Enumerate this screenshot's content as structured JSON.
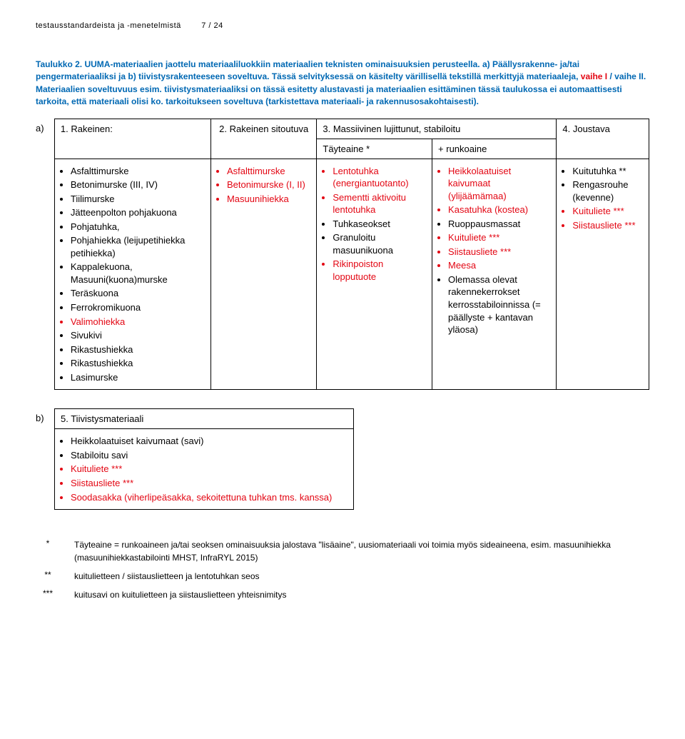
{
  "header": {
    "title_left": "testausstandardeista ja -menetelmistä",
    "page_num": "7 / 24"
  },
  "caption": {
    "lead": "Taulukko 2. UUMA-materiaalien jaottelu materiaaliluokkiin materiaalien teknisten ominaisuuksien perusteella. a) Päällysrakenne- ja/tai pengermateriaaliksi ja b) tiivistysrakenteeseen soveltuva. Tässä selvityksessä on käsitelty värillisellä tekstillä merkittyjä materiaaleja, ",
    "phase1": "vaihe I",
    "sep": " / ",
    "phase2": "vaihe II",
    "tail": ". Materiaalien soveltuvuus esim. tiivistysmateriaaliksi on tässä esitetty alustavasti ja materiaalien esittäminen tässä taulukossa ei automaattisesti tarkoita, että materiaali olisi ko. tarkoitukseen soveltuva (tarkistettava materiaali- ja rakennusosakohtaisesti)."
  },
  "labels": {
    "a": "a)",
    "b": "b)"
  },
  "tableA": {
    "head": {
      "c1": "1. Rakeinen:",
      "c2": "2. Rakeinen sitoutuva",
      "c3_top": "3. Massiivinen lujittunut, stabiloitu",
      "c3_left": "Täyteaine *",
      "c3_right": "+ runkoaine",
      "c4": "4. Joustava"
    },
    "col1": [
      {
        "t": "Asfalttimurske",
        "c": "blk"
      },
      {
        "t": "Betonimurske (III, IV)",
        "c": "blk"
      },
      {
        "t": "Tiilimurske",
        "c": "blk"
      },
      {
        "t": "Jätteenpolton pohjakuona",
        "c": "blk"
      },
      {
        "t": "Pohjatuhka,",
        "c": "blk"
      },
      {
        "t": "Pohjahiekka (leijupetihiekka petihiekka)",
        "c": "blk"
      },
      {
        "t": "Kappalekuona, Masuuni(kuona)murske",
        "c": "blk"
      },
      {
        "t": "Teräskuona",
        "c": "blk"
      },
      {
        "t": "Ferrokromikuona",
        "c": "blk"
      },
      {
        "t": "Valimohiekka",
        "c": "red"
      },
      {
        "t": "Sivukivi",
        "c": "blk"
      },
      {
        "t": "Rikastushiekka",
        "c": "blk"
      },
      {
        "t": "Rikastushiekka",
        "c": "blk"
      },
      {
        "t": "Lasimurske",
        "c": "blk"
      }
    ],
    "col2": [
      {
        "t": "Asfalttimurske",
        "c": "red"
      },
      {
        "t": "Betonimurske (I, II)",
        "c": "red"
      },
      {
        "t": "Masuunihiekka",
        "c": "red"
      }
    ],
    "col3a": [
      {
        "t": "Lentotuhka (energiantuotanto)",
        "c": "red"
      },
      {
        "t": "Sementti aktivoitu lentotuhka",
        "c": "red"
      },
      {
        "t": "Tuhkaseokset",
        "c": "blk"
      },
      {
        "t": "Granuloitu masuunikuona",
        "c": "blk"
      },
      {
        "t": "Rikinpoiston lopputuote",
        "c": "red"
      }
    ],
    "col3b": [
      {
        "t": "Heikkolaatuiset kaivumaat (ylijäämämaa)",
        "c": "red"
      },
      {
        "t": "Kasatuhka (kostea)",
        "c": "red"
      },
      {
        "t": "Ruoppausmassat",
        "c": "blk"
      },
      {
        "t": "Kuituliete ***",
        "c": "red"
      },
      {
        "t": "Siistausliete ***",
        "c": "red"
      },
      {
        "t": "Meesa",
        "c": "red"
      },
      {
        "t": "Olemassa olevat rakennekerrokset kerrosstabiloinnissa (= päällyste + kantavan yläosa)",
        "c": "blk"
      }
    ],
    "col4": [
      {
        "t": "Kuitutuhka **",
        "c": "blk"
      },
      {
        "t": "Rengasrouhe (kevenne)",
        "c": "blk"
      },
      {
        "t": "Kuituliete ***",
        "c": "red"
      },
      {
        "t": "Siistausliete ***",
        "c": "red"
      }
    ]
  },
  "tableB": {
    "title": "5. Tiivistysmateriaali",
    "items": [
      {
        "t": "Heikkolaatuiset kaivumaat (savi)",
        "c": "blk"
      },
      {
        "t": "Stabiloitu savi",
        "c": "blk"
      },
      {
        "t": "Kuituliete ***",
        "c": "red"
      },
      {
        "t": "Siistausliete ***",
        "c": "red"
      },
      {
        "t": "Soodasakka (viherlipeäsakka, sekoitettuna tuhkan tms. kanssa)",
        "c": "red"
      }
    ]
  },
  "footnotes": {
    "f1_mark": "*",
    "f1_text": "Täyteaine = runkoaineen ja/tai seoksen ominaisuuksia jalostava \"lisäaine\", uusiomateriaali voi toimia myös sideaineena, esim. masuunihiekka (masuunihiekkastabilointi MHST, InfraRYL 2015)",
    "f2_mark": "**",
    "f2_text": "kuitulietteen / siistauslietteen ja lentotuhkan seos",
    "f3_mark": "***",
    "f3_text": "kuitusavi on kuitulietteen ja siistauslietteen yhteisnimitys"
  },
  "colors": {
    "blue": "#0068b3",
    "red": "#e30613",
    "black": "#000000"
  }
}
